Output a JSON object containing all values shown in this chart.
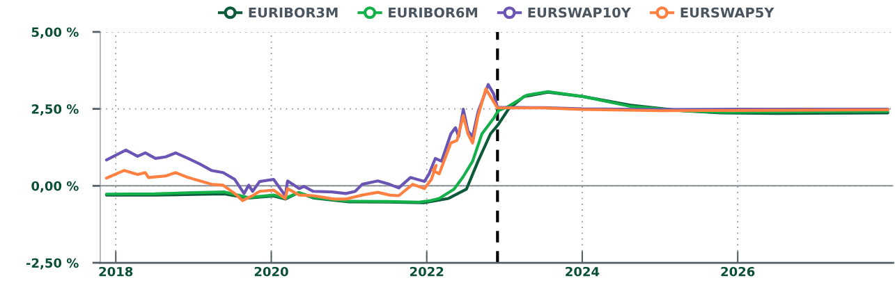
{
  "chart_data": {
    "type": "line",
    "xlim": [
      2017.8,
      2028.0
    ],
    "xticks": [
      2018,
      2020,
      2022,
      2024,
      2026
    ],
    "ylim": [
      -2.5,
      5.0
    ],
    "yticks": [
      {
        "value": -2.5,
        "label": "-2,50 %"
      },
      {
        "value": 0,
        "label": "0,00 %"
      },
      {
        "value": 2.5,
        "label": "2,50 %"
      },
      {
        "value": 5.0,
        "label": "5,00 %"
      }
    ],
    "grid": true,
    "legend": "top",
    "ref_lines": [
      {
        "axis": "y",
        "value": 0,
        "color": "#8a9196",
        "line_style": "solid"
      },
      {
        "axis": "x",
        "value": 2022.91,
        "color": "#000000",
        "line_style": "dashed"
      }
    ],
    "series": [
      {
        "name": "EURIBOR3M",
        "color": "#0b5a3a",
        "x": [
          2017.88,
          2018.5,
          2019.0,
          2019.4,
          2019.7,
          2020.03,
          2020.18,
          2020.35,
          2020.55,
          2021.0,
          2021.5,
          2021.96,
          2022.28,
          2022.51,
          2022.66,
          2022.82,
          2022.92,
          2023.05,
          2023.25,
          2023.56,
          2024.01,
          2024.62,
          2025.28,
          2025.79,
          2026.5,
          2027.93
        ],
        "values": [
          -0.3,
          -0.3,
          -0.28,
          -0.26,
          -0.4,
          -0.33,
          -0.43,
          -0.22,
          -0.4,
          -0.52,
          -0.53,
          -0.55,
          -0.41,
          -0.11,
          0.8,
          1.69,
          1.99,
          2.49,
          2.9,
          3.04,
          2.9,
          2.62,
          2.44,
          2.37,
          2.35,
          2.37
        ]
      },
      {
        "name": "EURIBOR6M",
        "color": "#14b04a",
        "x": [
          2017.88,
          2018.5,
          2019.0,
          2019.4,
          2019.7,
          2020.03,
          2020.18,
          2020.35,
          2020.55,
          2021.0,
          2021.5,
          2021.9,
          2022.05,
          2022.16,
          2022.35,
          2022.47,
          2022.59,
          2022.71,
          2022.86,
          2022.92,
          2023.05,
          2023.29,
          2023.56,
          2024.01,
          2024.62,
          2025.28,
          2025.79,
          2027.93
        ],
        "values": [
          -0.27,
          -0.26,
          -0.22,
          -0.2,
          -0.38,
          -0.3,
          -0.4,
          -0.22,
          -0.38,
          -0.5,
          -0.51,
          -0.53,
          -0.48,
          -0.41,
          -0.11,
          0.3,
          0.8,
          1.69,
          2.19,
          2.44,
          2.58,
          2.95,
          3.06,
          2.9,
          2.58,
          2.44,
          2.39,
          2.42
        ]
      },
      {
        "name": "EURSWAP10Y",
        "color": "#6a55b5",
        "x": [
          2017.88,
          2018.13,
          2018.28,
          2018.38,
          2018.51,
          2018.64,
          2018.77,
          2018.93,
          2019.08,
          2019.23,
          2019.38,
          2019.53,
          2019.65,
          2019.71,
          2019.76,
          2019.85,
          2020.03,
          2020.18,
          2020.21,
          2020.36,
          2020.42,
          2020.54,
          2020.78,
          2020.96,
          2021.08,
          2021.17,
          2021.37,
          2021.52,
          2021.64,
          2021.79,
          2021.97,
          2022.03,
          2022.11,
          2022.19,
          2022.31,
          2022.37,
          2022.41,
          2022.47,
          2022.53,
          2022.59,
          2022.66,
          2022.79,
          2022.86,
          2022.91,
          2023.5,
          2024.0,
          2025.0,
          2026.0,
          2027.93
        ],
        "values": [
          0.84,
          1.16,
          0.96,
          1.07,
          0.89,
          0.94,
          1.07,
          0.89,
          0.71,
          0.5,
          0.43,
          0.21,
          -0.25,
          0.02,
          -0.18,
          0.14,
          0.21,
          -0.32,
          0.16,
          -0.09,
          -0.02,
          -0.18,
          -0.2,
          -0.25,
          -0.18,
          0.05,
          0.16,
          0.05,
          -0.07,
          0.27,
          0.14,
          0.39,
          0.89,
          0.8,
          1.69,
          1.89,
          1.6,
          2.49,
          1.78,
          1.6,
          2.4,
          3.29,
          2.99,
          2.55,
          2.54,
          2.5,
          2.48,
          2.49,
          2.49
        ]
      },
      {
        "name": "EURSWAP5Y",
        "color": "#ff8040",
        "x": [
          2017.88,
          2018.11,
          2018.28,
          2018.38,
          2018.42,
          2018.64,
          2018.77,
          2018.93,
          2019.23,
          2019.38,
          2019.53,
          2019.63,
          2019.76,
          2019.85,
          2020.03,
          2020.18,
          2020.21,
          2020.36,
          2020.54,
          2020.81,
          2020.96,
          2021.17,
          2021.37,
          2021.52,
          2021.64,
          2021.82,
          2021.97,
          2022.06,
          2022.12,
          2022.08,
          2022.16,
          2022.31,
          2022.39,
          2022.47,
          2022.53,
          2022.59,
          2022.66,
          2022.76,
          2022.82,
          2022.91,
          2023.5,
          2024.0,
          2025.0,
          2026.0,
          2027.93
        ],
        "values": [
          0.25,
          0.5,
          0.37,
          0.43,
          0.27,
          0.32,
          0.43,
          0.27,
          0.05,
          0.02,
          -0.25,
          -0.48,
          -0.32,
          -0.18,
          -0.14,
          -0.41,
          -0.09,
          -0.3,
          -0.32,
          -0.43,
          -0.43,
          -0.3,
          -0.21,
          -0.3,
          -0.32,
          0.05,
          -0.09,
          0.21,
          0.66,
          0.5,
          0.39,
          1.39,
          1.48,
          2.28,
          1.69,
          1.39,
          2.28,
          3.15,
          2.9,
          2.53,
          2.53,
          2.48,
          2.44,
          2.45,
          2.47
        ]
      }
    ]
  }
}
